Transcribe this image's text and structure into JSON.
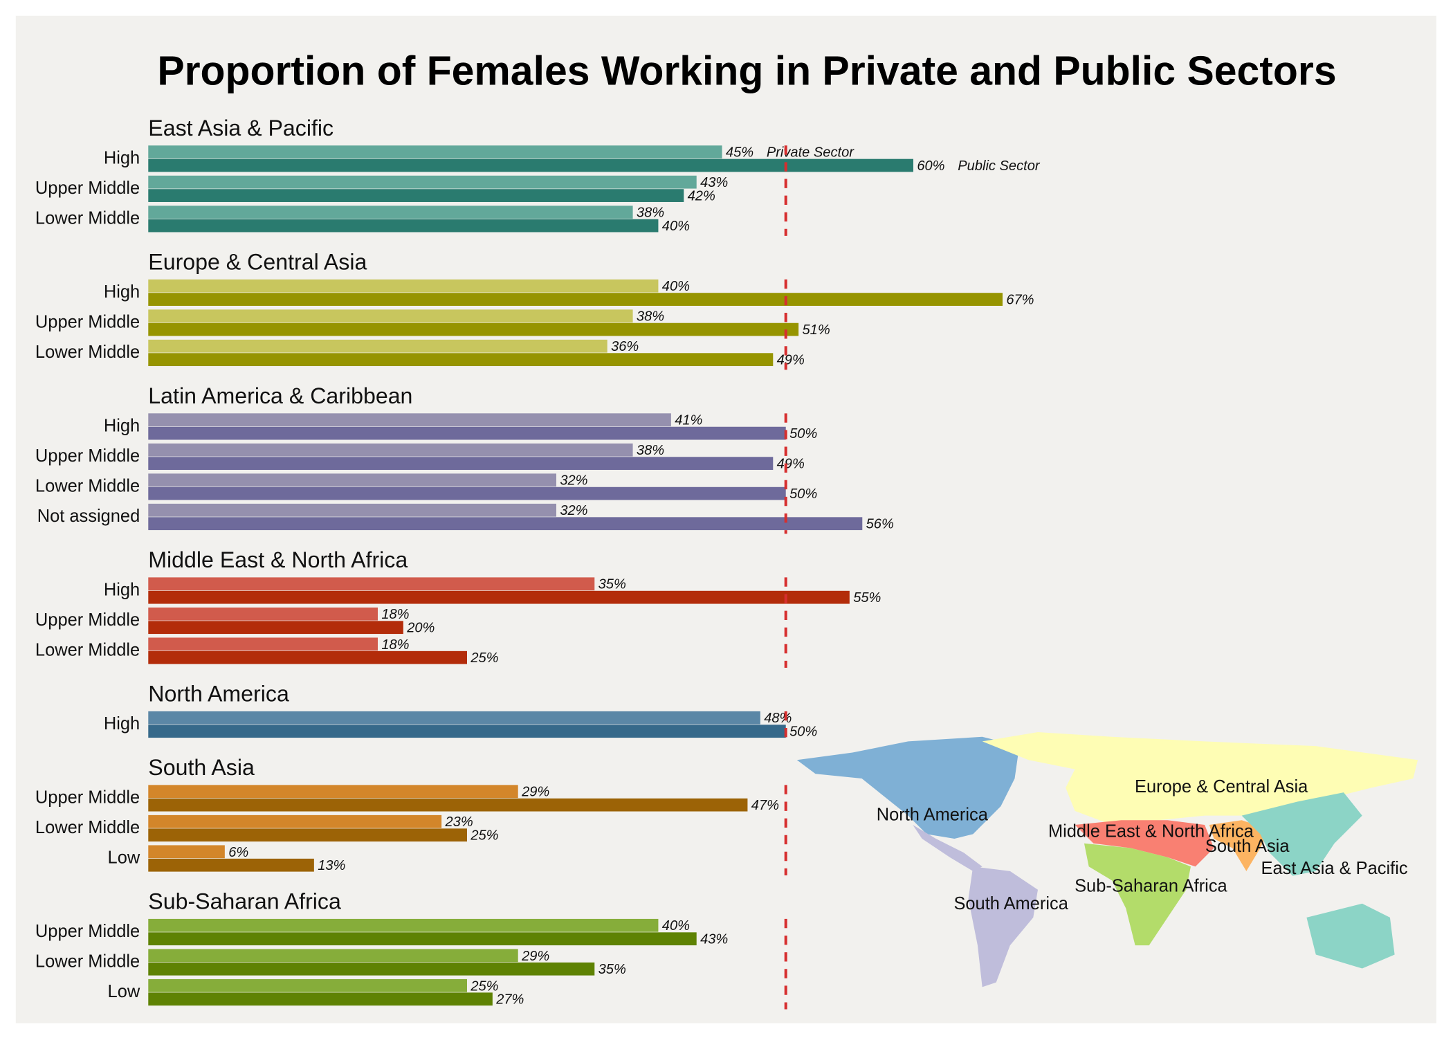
{
  "chart_data": {
    "type": "bar",
    "title": "Proportion of Females Working in Private and Public Sectors",
    "series_names": [
      "Private Sector",
      "Public Sector"
    ],
    "xlim": [
      0,
      100
    ],
    "reference_line": 50,
    "groups": [
      {
        "name": "East Asia & Pacific",
        "categories": [
          "High",
          "Upper Middle",
          "Lower Middle"
        ],
        "series": [
          {
            "color": "#62a89a",
            "values": [
              45,
              43,
              38
            ],
            "value_labels": [
              "45%",
              "43%",
              "38%"
            ]
          },
          {
            "color": "#2a7b6f",
            "values": [
              60,
              42,
              40
            ],
            "value_labels": [
              "60%",
              "42%",
              "40%"
            ]
          }
        ]
      },
      {
        "name": "Europe & Central Asia",
        "categories": [
          "High",
          "Upper Middle",
          "Lower Middle"
        ],
        "series": [
          {
            "color": "#c8c65e",
            "values": [
              40,
              38,
              36
            ],
            "value_labels": [
              "40%",
              "38%",
              "36%"
            ]
          },
          {
            "color": "#969400",
            "values": [
              67,
              51,
              49
            ],
            "value_labels": [
              "67%",
              "51%",
              "49%"
            ]
          }
        ]
      },
      {
        "name": "Latin America & Caribbean",
        "categories": [
          "High",
          "Upper Middle",
          "Lower Middle",
          "Not assigned"
        ],
        "series": [
          {
            "color": "#9590ae",
            "values": [
              41,
              38,
              32,
              32
            ],
            "value_labels": [
              "41%",
              "38%",
              "32%",
              "32%"
            ]
          },
          {
            "color": "#6e6a9b",
            "values": [
              50,
              49,
              50,
              56
            ],
            "value_labels": [
              "50%",
              "49%",
              "50%",
              "56%"
            ]
          }
        ]
      },
      {
        "name": "Middle East & North Africa",
        "categories": [
          "High",
          "Upper Middle",
          "Lower Middle"
        ],
        "series": [
          {
            "color": "#d15b4c",
            "values": [
              35,
              18,
              18
            ],
            "value_labels": [
              "35%",
              "18%",
              "18%"
            ]
          },
          {
            "color": "#b32c0a",
            "values": [
              55,
              20,
              25
            ],
            "value_labels": [
              "55%",
              "20%",
              "25%"
            ]
          }
        ]
      },
      {
        "name": "North America",
        "categories": [
          "High"
        ],
        "series": [
          {
            "color": "#5b87a6",
            "values": [
              48
            ],
            "value_labels": [
              "48%"
            ]
          },
          {
            "color": "#36698a",
            "values": [
              50
            ],
            "value_labels": [
              "50%"
            ]
          }
        ]
      },
      {
        "name": "South Asia",
        "categories": [
          "Upper Middle",
          "Lower Middle",
          "Low"
        ],
        "series": [
          {
            "color": "#d3862a",
            "values": [
              29,
              23,
              6
            ],
            "value_labels": [
              "29%",
              "23%",
              "6%"
            ]
          },
          {
            "color": "#9c6306",
            "values": [
              47,
              25,
              13
            ],
            "value_labels": [
              "47%",
              "25%",
              "13%"
            ]
          }
        ]
      },
      {
        "name": "Sub-Saharan Africa",
        "categories": [
          "Upper Middle",
          "Lower Middle",
          "Low"
        ],
        "series": [
          {
            "color": "#86ad3a",
            "values": [
              40,
              29,
              25
            ],
            "value_labels": [
              "40%",
              "29%",
              "25%"
            ]
          },
          {
            "color": "#5e8203",
            "values": [
              43,
              35,
              27
            ],
            "value_labels": [
              "43%",
              "35%",
              "27%"
            ]
          }
        ]
      }
    ],
    "map_labels": [
      "Europe & Central Asia",
      "North America",
      "Middle East & North Africa",
      "South Asia",
      "East Asia & Pacific",
      "Sub-Saharan Africa",
      "South America"
    ]
  }
}
